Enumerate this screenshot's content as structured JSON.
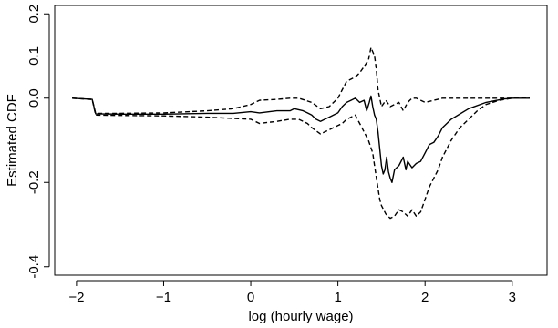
{
  "chart_data": {
    "type": "line",
    "title": "",
    "xlabel": "log (hourly wage)",
    "ylabel": "Estimated CDF",
    "xlim": [
      -2.25,
      3.4
    ],
    "ylim": [
      -0.42,
      0.22
    ],
    "x_ticks": [
      {
        "value": -2,
        "label": "−2"
      },
      {
        "value": -1,
        "label": "−1"
      },
      {
        "value": 0,
        "label": "0"
      },
      {
        "value": 1,
        "label": "1"
      },
      {
        "value": 2,
        "label": "2"
      },
      {
        "value": 3,
        "label": "3"
      }
    ],
    "y_ticks": [
      {
        "value": -0.4,
        "label": "-0.4"
      },
      {
        "value": -0.2,
        "label": "-0.2"
      },
      {
        "value": 0.0,
        "label": "0.0"
      },
      {
        "value": 0.1,
        "label": "0.1"
      },
      {
        "value": 0.2,
        "label": "0.2"
      }
    ],
    "grid": false,
    "series": [
      {
        "style": "solid",
        "points": [
          [
            -2.05,
            0.0
          ],
          [
            -1.82,
            -0.003
          ],
          [
            -1.78,
            -0.037
          ],
          [
            -1.5,
            -0.038
          ],
          [
            -1.0,
            -0.038
          ],
          [
            -0.5,
            -0.036
          ],
          [
            -0.2,
            -0.036
          ],
          [
            0.0,
            -0.032
          ],
          [
            0.1,
            -0.035
          ],
          [
            0.3,
            -0.03
          ],
          [
            0.45,
            -0.03
          ],
          [
            0.5,
            -0.025
          ],
          [
            0.6,
            -0.03
          ],
          [
            0.65,
            -0.035
          ],
          [
            0.7,
            -0.04
          ],
          [
            0.75,
            -0.05
          ],
          [
            0.8,
            -0.055
          ],
          [
            0.85,
            -0.05
          ],
          [
            0.9,
            -0.045
          ],
          [
            0.95,
            -0.04
          ],
          [
            1.0,
            -0.035
          ],
          [
            1.05,
            -0.02
          ],
          [
            1.1,
            -0.01
          ],
          [
            1.15,
            -0.005
          ],
          [
            1.2,
            0.0
          ],
          [
            1.25,
            -0.01
          ],
          [
            1.3,
            -0.005
          ],
          [
            1.33,
            -0.03
          ],
          [
            1.36,
            -0.01
          ],
          [
            1.38,
            0.005
          ],
          [
            1.4,
            -0.02
          ],
          [
            1.42,
            -0.04
          ],
          [
            1.44,
            -0.05
          ],
          [
            1.46,
            -0.08
          ],
          [
            1.48,
            -0.12
          ],
          [
            1.5,
            -0.16
          ],
          [
            1.52,
            -0.18
          ],
          [
            1.54,
            -0.17
          ],
          [
            1.56,
            -0.14
          ],
          [
            1.58,
            -0.175
          ],
          [
            1.6,
            -0.19
          ],
          [
            1.62,
            -0.2
          ],
          [
            1.65,
            -0.17
          ],
          [
            1.7,
            -0.16
          ],
          [
            1.75,
            -0.14
          ],
          [
            1.78,
            -0.17
          ],
          [
            1.8,
            -0.15
          ],
          [
            1.85,
            -0.165
          ],
          [
            1.9,
            -0.155
          ],
          [
            1.95,
            -0.15
          ],
          [
            2.0,
            -0.13
          ],
          [
            2.05,
            -0.11
          ],
          [
            2.1,
            -0.105
          ],
          [
            2.15,
            -0.09
          ],
          [
            2.2,
            -0.07
          ],
          [
            2.3,
            -0.05
          ],
          [
            2.5,
            -0.025
          ],
          [
            2.7,
            -0.01
          ],
          [
            2.9,
            -0.002
          ],
          [
            3.0,
            0.0
          ],
          [
            3.2,
            0.0
          ]
        ]
      },
      {
        "style": "dashed",
        "points": [
          [
            -2.05,
            0.0
          ],
          [
            -1.82,
            -0.003
          ],
          [
            -1.78,
            -0.036
          ],
          [
            -1.5,
            -0.036
          ],
          [
            -1.0,
            -0.035
          ],
          [
            -0.5,
            -0.03
          ],
          [
            -0.2,
            -0.025
          ],
          [
            0.0,
            -0.015
          ],
          [
            0.1,
            -0.005
          ],
          [
            0.3,
            -0.003
          ],
          [
            0.45,
            0.0
          ],
          [
            0.55,
            0.0
          ],
          [
            0.7,
            -0.01
          ],
          [
            0.8,
            -0.025
          ],
          [
            0.9,
            -0.02
          ],
          [
            1.0,
            0.0
          ],
          [
            1.05,
            0.02
          ],
          [
            1.1,
            0.04
          ],
          [
            1.15,
            0.045
          ],
          [
            1.2,
            0.05
          ],
          [
            1.25,
            0.06
          ],
          [
            1.3,
            0.075
          ],
          [
            1.35,
            0.09
          ],
          [
            1.38,
            0.12
          ],
          [
            1.4,
            0.11
          ],
          [
            1.42,
            0.1
          ],
          [
            1.44,
            0.07
          ],
          [
            1.46,
            0.02
          ],
          [
            1.48,
            0.0
          ],
          [
            1.5,
            -0.02
          ],
          [
            1.55,
            -0.005
          ],
          [
            1.6,
            -0.02
          ],
          [
            1.65,
            -0.015
          ],
          [
            1.7,
            -0.01
          ],
          [
            1.75,
            -0.03
          ],
          [
            1.8,
            -0.01
          ],
          [
            1.85,
            0.0
          ],
          [
            1.9,
            0.0
          ],
          [
            2.0,
            -0.01
          ],
          [
            2.1,
            -0.005
          ],
          [
            2.2,
            0.0
          ],
          [
            2.5,
            0.0
          ],
          [
            2.7,
            0.0
          ],
          [
            3.0,
            0.0
          ],
          [
            3.2,
            0.0
          ]
        ]
      },
      {
        "style": "dashed",
        "points": [
          [
            -2.05,
            0.0
          ],
          [
            -1.82,
            -0.003
          ],
          [
            -1.78,
            -0.04
          ],
          [
            -1.5,
            -0.041
          ],
          [
            -1.0,
            -0.042
          ],
          [
            -0.5,
            -0.045
          ],
          [
            -0.2,
            -0.048
          ],
          [
            0.0,
            -0.05
          ],
          [
            0.1,
            -0.06
          ],
          [
            0.3,
            -0.055
          ],
          [
            0.45,
            -0.05
          ],
          [
            0.55,
            -0.05
          ],
          [
            0.65,
            -0.06
          ],
          [
            0.7,
            -0.07
          ],
          [
            0.8,
            -0.085
          ],
          [
            0.9,
            -0.075
          ],
          [
            1.0,
            -0.065
          ],
          [
            1.05,
            -0.06
          ],
          [
            1.1,
            -0.05
          ],
          [
            1.15,
            -0.045
          ],
          [
            1.2,
            -0.04
          ],
          [
            1.25,
            -0.06
          ],
          [
            1.3,
            -0.08
          ],
          [
            1.35,
            -0.1
          ],
          [
            1.4,
            -0.13
          ],
          [
            1.42,
            -0.16
          ],
          [
            1.45,
            -0.2
          ],
          [
            1.48,
            -0.24
          ],
          [
            1.5,
            -0.255
          ],
          [
            1.55,
            -0.275
          ],
          [
            1.6,
            -0.285
          ],
          [
            1.65,
            -0.28
          ],
          [
            1.7,
            -0.265
          ],
          [
            1.75,
            -0.27
          ],
          [
            1.8,
            -0.28
          ],
          [
            1.85,
            -0.265
          ],
          [
            1.9,
            -0.28
          ],
          [
            1.95,
            -0.27
          ],
          [
            2.0,
            -0.24
          ],
          [
            2.05,
            -0.21
          ],
          [
            2.1,
            -0.19
          ],
          [
            2.15,
            -0.17
          ],
          [
            2.2,
            -0.14
          ],
          [
            2.3,
            -0.1
          ],
          [
            2.4,
            -0.07
          ],
          [
            2.5,
            -0.05
          ],
          [
            2.6,
            -0.03
          ],
          [
            2.7,
            -0.015
          ],
          [
            2.85,
            -0.005
          ],
          [
            3.0,
            0.0
          ],
          [
            3.2,
            0.0
          ]
        ]
      }
    ]
  }
}
